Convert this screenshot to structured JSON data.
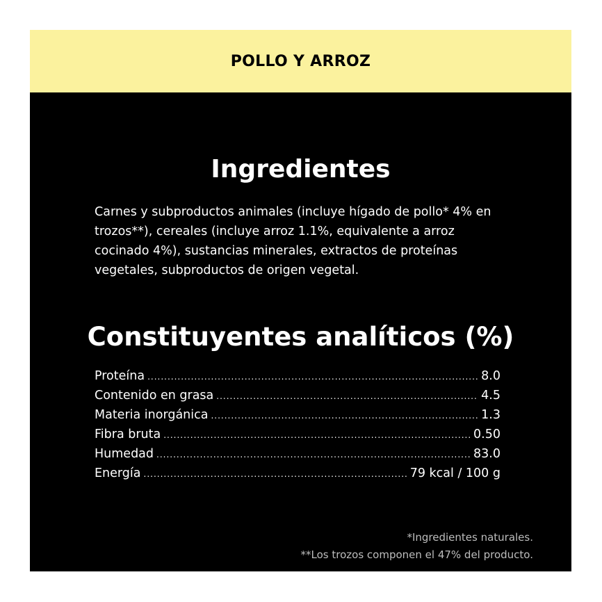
{
  "header": {
    "title": "POLLO Y ARROZ",
    "color": "#fbf29e"
  },
  "ingredients": {
    "title": "Ingredientes",
    "text": "Carnes y subproductos animales (incluye hígado de pollo* 4% en trozos**), cereales (incluye arroz 1.1%, equivalente a arroz cocinado 4%), sustancias minerales, extractos de proteínas vegetales, subproductos de origen vegetal."
  },
  "constituents": {
    "title": "Constituyentes analíticos (%)",
    "rows": [
      {
        "label": "Proteína",
        "value": "8.0"
      },
      {
        "label": "Contenido en grasa",
        "value": "4.5"
      },
      {
        "label": "Materia inorgánica",
        "value": "1.3"
      },
      {
        "label": "Fibra bruta",
        "value": "0.50"
      },
      {
        "label": "Humedad",
        "value": "83.0"
      },
      {
        "label": "Energía",
        "value": "79 kcal / 100 g"
      }
    ]
  },
  "footnotes": [
    "*Ingredientes naturales.",
    "**Los trozos componen el 47% del producto."
  ]
}
